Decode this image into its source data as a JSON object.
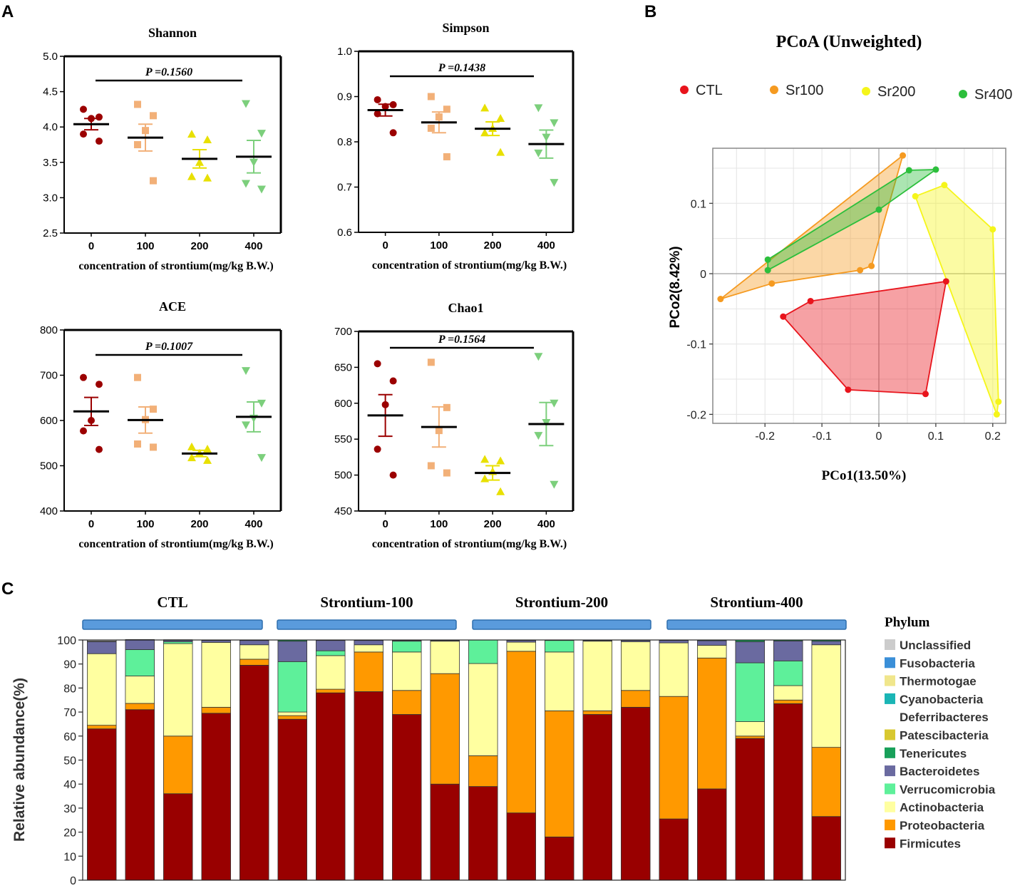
{
  "panels": {
    "a": "A",
    "b": "B",
    "c": "C"
  },
  "colors": {
    "CTL": "#9b0000",
    "Sr100": "#f2b078",
    "Sr200": "#e8e000",
    "Sr400": "#7ccf7c",
    "pcoa": {
      "CTL": "#e8141c",
      "Sr100": "#f59a20",
      "Sr200": "#f5f51a",
      "Sr400": "#2cbf3c"
    }
  },
  "chart_data": [
    {
      "type": "scatter",
      "id": "shannon",
      "title": "Shannon",
      "p_label": "P =0.1560",
      "xlabel": "concentration of strontium(mg/kg B.W.)",
      "categories": [
        "0",
        "100",
        "200",
        "400"
      ],
      "yticks": [
        "2.5",
        "3.0",
        "3.5",
        "4.0",
        "4.5",
        "5.0"
      ],
      "ylim": [
        2.5,
        5.0
      ],
      "points": [
        [
          4.25,
          4.14,
          4.12,
          3.9,
          3.8
        ],
        [
          4.32,
          4.16,
          3.95,
          3.75,
          3.24
        ],
        [
          3.9,
          3.82,
          3.5,
          3.3,
          3.28
        ],
        [
          4.33,
          3.91,
          3.5,
          3.2,
          3.12
        ]
      ],
      "mean": [
        4.04,
        3.85,
        3.55,
        3.58
      ],
      "sem": [
        0.08,
        0.19,
        0.13,
        0.23
      ]
    },
    {
      "type": "scatter",
      "id": "simpson",
      "title": "Simpson",
      "p_label": "P =0.1438",
      "xlabel": "concentration of strontium(mg/kg B.W.)",
      "categories": [
        "0",
        "100",
        "200",
        "400"
      ],
      "yticks": [
        "0.6",
        "0.7",
        "0.8",
        "0.9",
        "1.0"
      ],
      "ylim": [
        0.6,
        1.0
      ],
      "points": [
        [
          0.893,
          0.882,
          0.878,
          0.862,
          0.82
        ],
        [
          0.9,
          0.872,
          0.855,
          0.83,
          0.767
        ],
        [
          0.875,
          0.852,
          0.83,
          0.82,
          0.777
        ],
        [
          0.875,
          0.842,
          0.81,
          0.775,
          0.71
        ]
      ],
      "mean": [
        0.87,
        0.843,
        0.829,
        0.795
      ],
      "sem": [
        0.013,
        0.023,
        0.015,
        0.031
      ]
    },
    {
      "type": "scatter",
      "id": "ace",
      "title": "ACE",
      "p_label": "P =0.1007",
      "xlabel": "concentration of strontium(mg/kg B.W.)",
      "categories": [
        "0",
        "100",
        "200",
        "400"
      ],
      "yticks": [
        "400",
        "500",
        "600",
        "700",
        "800"
      ],
      "ylim": [
        400,
        800
      ],
      "points": [
        [
          695,
          680,
          600,
          577,
          536
        ],
        [
          695,
          625,
          602,
          548,
          541
        ],
        [
          542,
          537,
          528,
          518,
          512
        ],
        [
          710,
          638,
          605,
          590,
          518
        ]
      ],
      "mean": [
        620,
        601,
        527,
        608
      ],
      "sem": [
        31,
        29,
        7,
        33
      ]
    },
    {
      "type": "scatter",
      "id": "chao1",
      "title": "Chao1",
      "p_label": "P =0.1564",
      "xlabel": "concentration of strontium(mg/kg B.W.)",
      "categories": [
        "0",
        "100",
        "200",
        "400"
      ],
      "yticks": [
        "450",
        "500",
        "550",
        "600",
        "650",
        "700"
      ],
      "ylim": [
        450,
        700
      ],
      "points": [
        [
          655,
          631,
          598,
          536,
          500
        ],
        [
          657,
          594,
          562,
          513,
          503
        ],
        [
          522,
          520,
          505,
          495,
          477
        ],
        [
          665,
          600,
          573,
          555,
          487
        ]
      ],
      "mean": [
        583,
        567,
        503,
        571
      ],
      "sem": [
        29,
        28,
        10,
        30
      ]
    },
    {
      "type": "scatter",
      "id": "pcoa",
      "title": "PCoA (Unweighted)",
      "xlabel": "PCo1(13.50%)",
      "ylabel": "PCo2(8.42%)",
      "xlim": [
        -0.28,
        0.22
      ],
      "ylim": [
        -0.21,
        0.18
      ],
      "xticks": [
        "-0.2",
        "-0.1",
        "0",
        "0.1",
        "0.2"
      ],
      "yticks": [
        "-0.2",
        "-0.1",
        "0",
        "0.1"
      ],
      "legend": [
        "CTL",
        "Sr100",
        "Sr200",
        "Sr400"
      ],
      "groups": [
        {
          "name": "CTL",
          "points": [
            [
              -0.168,
              -0.061
            ],
            [
              -0.12,
              -0.039
            ],
            [
              0.118,
              -0.011
            ],
            [
              0.082,
              -0.171
            ],
            [
              -0.054,
              -0.165
            ]
          ]
        },
        {
          "name": "Sr100",
          "points": [
            [
              -0.278,
              -0.036
            ],
            [
              -0.188,
              -0.014
            ],
            [
              -0.033,
              0.005
            ],
            [
              -0.013,
              0.011
            ],
            [
              0.042,
              0.168
            ]
          ]
        },
        {
          "name": "Sr200",
          "points": [
            [
              0.064,
              0.11
            ],
            [
              0.115,
              0.126
            ],
            [
              0.2,
              0.063
            ],
            [
              0.21,
              -0.182
            ],
            [
              0.207,
              -0.2
            ]
          ]
        },
        {
          "name": "Sr400",
          "points": [
            [
              -0.195,
              0.005
            ],
            [
              -0.195,
              0.02
            ],
            [
              0,
              0.091
            ],
            [
              0.053,
              0.147
            ],
            [
              0.1,
              0.148
            ]
          ]
        }
      ]
    },
    {
      "type": "bar",
      "id": "phylum",
      "stacked": true,
      "ylabel": "Relative abundance(%)",
      "ylim": [
        0,
        100
      ],
      "yticks": [
        "0",
        "10",
        "20",
        "30",
        "40",
        "50",
        "60",
        "70",
        "80",
        "90",
        "100"
      ],
      "groups": [
        "CTL",
        "Strontium-100",
        "Strontium-200",
        "Strontium-400"
      ],
      "legend_title": "Phylum",
      "legend": [
        "Unclassified",
        "Fusobacteria",
        "Thermotogae",
        "Cyanobacteria",
        "Deferribacteres",
        "Patescibacteria",
        "Tenericutes",
        "Bacteroidetes",
        "Verrucomicrobia",
        "Actinobacteria",
        "Proteobacteria",
        "Firmicutes"
      ],
      "legend_colors": [
        "#cccccc",
        "#3a8fd8",
        "#f0e68c",
        "#1ab5b5",
        "#ffffff",
        "#d8c830",
        "#18a05a",
        "#6a6aa0",
        "#5ef09a",
        "#ffffa0",
        "#ff9900",
        "#990000"
      ],
      "stack_order": [
        "Firmicutes",
        "Proteobacteria",
        "Actinobacteria",
        "Verrucomicrobia",
        "Bacteroidetes",
        "Tenericutes"
      ],
      "stack_colors": [
        "#990000",
        "#ff9900",
        "#ffffa0",
        "#5ef09a",
        "#6a6aa0",
        "#18a05a"
      ],
      "samples": [
        [
          63,
          1.5,
          29.8,
          0,
          5,
          0.2
        ],
        [
          71,
          2.6,
          11.4,
          11,
          4,
          0.2
        ],
        [
          36,
          24,
          38.5,
          0.8,
          0.6,
          0.2
        ],
        [
          69.5,
          2.5,
          27,
          0,
          0.8,
          0.2
        ],
        [
          89.5,
          2.5,
          6,
          0,
          1.8,
          0.2
        ],
        [
          67,
          1.5,
          1.5,
          21,
          8.5,
          0.5
        ],
        [
          78,
          1.5,
          14,
          2,
          4.3,
          0.2
        ],
        [
          78.5,
          16.5,
          3,
          0,
          1.8,
          0.2
        ],
        [
          69,
          10,
          16,
          4.5,
          0.3,
          0.2
        ],
        [
          40,
          46,
          13.5,
          0,
          0.3,
          0.2
        ],
        [
          39,
          12.8,
          38.4,
          9.8,
          0,
          0
        ],
        [
          28,
          67.3,
          3.8,
          0,
          0.7,
          0.2
        ],
        [
          18,
          52.5,
          24.5,
          4.8,
          0,
          0.2
        ],
        [
          69,
          1.5,
          29,
          0,
          0.3,
          0.2
        ],
        [
          72,
          7,
          20.3,
          0,
          0.5,
          0.2
        ],
        [
          25.5,
          51,
          22.3,
          0,
          1,
          0.2
        ],
        [
          38,
          54.5,
          5.3,
          0,
          1.9,
          0.3
        ],
        [
          59,
          1,
          6,
          24.5,
          8.8,
          0.7
        ],
        [
          73.5,
          1.5,
          6,
          10.3,
          8.3,
          0.4
        ],
        [
          26.5,
          28.8,
          42.7,
          0,
          1.5,
          0.5
        ]
      ]
    }
  ]
}
